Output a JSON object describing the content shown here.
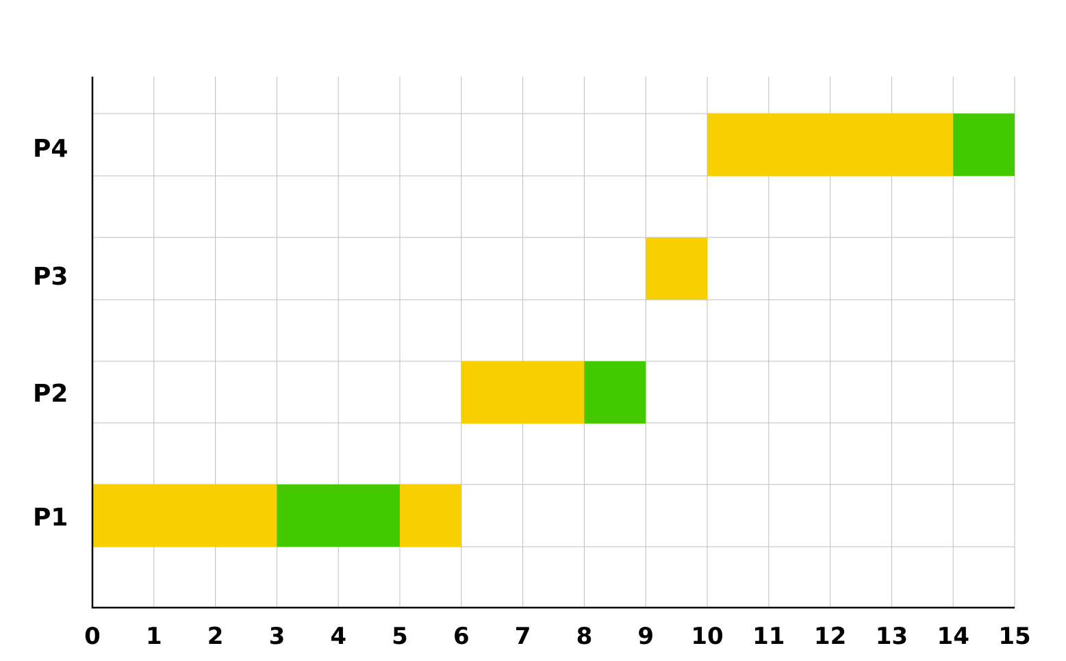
{
  "chart_data": {
    "type": "bar",
    "subtype": "gantt",
    "title": "",
    "xlabel": "",
    "ylabel": "",
    "xlim": [
      0,
      15
    ],
    "x_ticks": [
      "0",
      "1",
      "2",
      "3",
      "4",
      "5",
      "6",
      "7",
      "8",
      "9",
      "10",
      "11",
      "12",
      "13",
      "14",
      "15"
    ],
    "grid": true,
    "legend": "none",
    "rows": [
      "P1",
      "P2",
      "P3",
      "P4"
    ],
    "colors": {
      "yellow": "#f8cf00",
      "green": "#44c800"
    },
    "segments": [
      {
        "row": "P1",
        "start": 0,
        "end": 3,
        "color": "yellow"
      },
      {
        "row": "P1",
        "start": 3,
        "end": 5,
        "color": "green"
      },
      {
        "row": "P1",
        "start": 5,
        "end": 6,
        "color": "yellow"
      },
      {
        "row": "P2",
        "start": 6,
        "end": 8,
        "color": "yellow"
      },
      {
        "row": "P2",
        "start": 8,
        "end": 9,
        "color": "green"
      },
      {
        "row": "P3",
        "start": 9,
        "end": 10,
        "color": "yellow"
      },
      {
        "row": "P4",
        "start": 10,
        "end": 14,
        "color": "yellow"
      },
      {
        "row": "P4",
        "start": 14,
        "end": 15,
        "color": "green"
      }
    ]
  }
}
